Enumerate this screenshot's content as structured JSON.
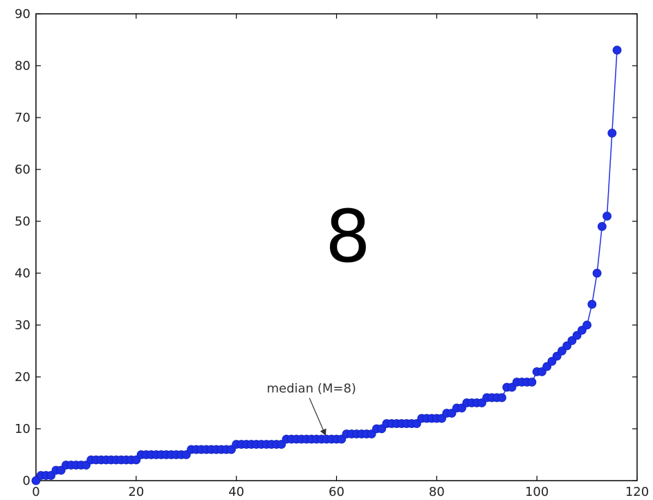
{
  "chart_data": {
    "type": "line",
    "title": "",
    "xlabel": "",
    "ylabel": "",
    "xlim": [
      0,
      120
    ],
    "ylim": [
      0,
      90
    ],
    "xticks": [
      "0",
      "20",
      "40",
      "60",
      "80",
      "100",
      "120"
    ],
    "yticks": [
      "0",
      "10",
      "20",
      "30",
      "40",
      "50",
      "60",
      "70",
      "80",
      "90"
    ],
    "grid": false,
    "legend": "none",
    "series": [
      {
        "color": "#1f2fe6",
        "marker": "circle",
        "x": [
          0,
          1,
          2,
          3,
          4,
          5,
          6,
          7,
          8,
          9,
          10,
          11,
          12,
          13,
          14,
          15,
          16,
          17,
          18,
          19,
          20,
          21,
          22,
          23,
          24,
          25,
          26,
          27,
          28,
          29,
          30,
          31,
          32,
          33,
          34,
          35,
          36,
          37,
          38,
          39,
          40,
          41,
          42,
          43,
          44,
          45,
          46,
          47,
          48,
          49,
          50,
          51,
          52,
          53,
          54,
          55,
          56,
          57,
          58,
          59,
          60,
          61,
          62,
          63,
          64,
          65,
          66,
          67,
          68,
          69,
          70,
          71,
          72,
          73,
          74,
          75,
          76,
          77,
          78,
          79,
          80,
          81,
          82,
          83,
          84,
          85,
          86,
          87,
          88,
          89,
          90,
          91,
          92,
          93,
          94,
          95,
          96,
          97,
          98,
          99,
          100,
          101,
          102,
          103,
          104,
          105,
          106,
          107,
          108,
          109,
          110,
          111,
          112,
          113,
          114,
          115,
          116
        ],
        "y": [
          0,
          1,
          1,
          1,
          2,
          2,
          3,
          3,
          3,
          3,
          3,
          4,
          4,
          4,
          4,
          4,
          4,
          4,
          4,
          4,
          4,
          5,
          5,
          5,
          5,
          5,
          5,
          5,
          5,
          5,
          5,
          6,
          6,
          6,
          6,
          6,
          6,
          6,
          6,
          6,
          7,
          7,
          7,
          7,
          7,
          7,
          7,
          7,
          7,
          7,
          8,
          8,
          8,
          8,
          8,
          8,
          8,
          8,
          8,
          8,
          8,
          8,
          9,
          9,
          9,
          9,
          9,
          9,
          10,
          10,
          11,
          11,
          11,
          11,
          11,
          11,
          11,
          12,
          12,
          12,
          12,
          12,
          13,
          13,
          14,
          14,
          15,
          15,
          15,
          15,
          16,
          16,
          16,
          16,
          18,
          18,
          19,
          19,
          19,
          19,
          21,
          21,
          22,
          23,
          24,
          25,
          26,
          27,
          28,
          29,
          30,
          34,
          40,
          49,
          51,
          67,
          83
        ]
      }
    ],
    "annotations": [
      {
        "text": "median (M=8)",
        "x": 58,
        "y": 8,
        "text_x": 55,
        "text_y": 17
      }
    ],
    "overlay_text": "8"
  }
}
